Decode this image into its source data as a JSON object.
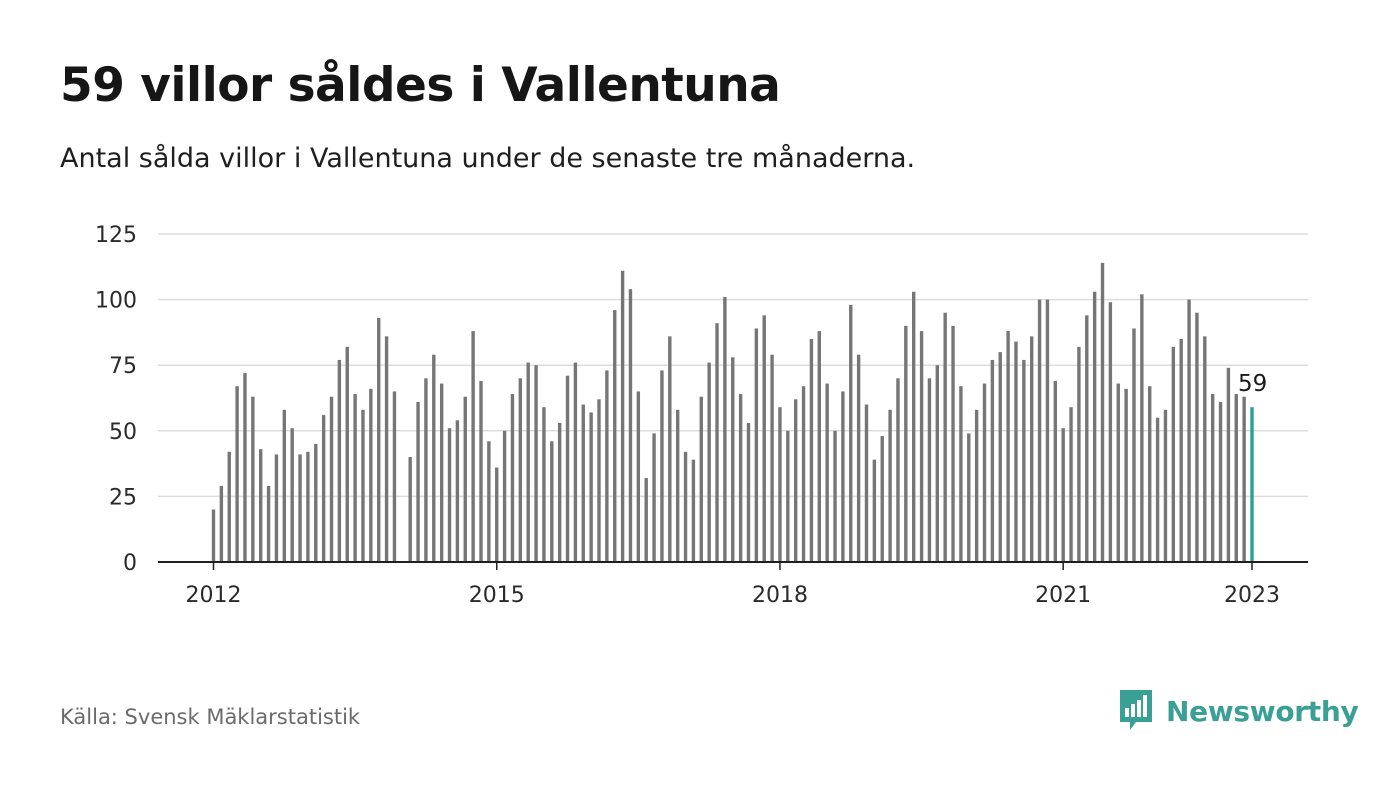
{
  "header": {
    "title": "59 villor såldes i Vallentuna",
    "subtitle": "Antal sålda villor i Vallentuna under de senaste tre månaderna."
  },
  "footer": {
    "source": "Källa: Svensk Mäklarstatistik",
    "brand": "Newsworthy"
  },
  "colors": {
    "bar": "#767676",
    "highlight": "#2aa198",
    "grid": "#dcdcdc",
    "axis": "#1f1f1f",
    "brand": "#3aa095"
  },
  "icons": {
    "brand_logo": "newsworthy-bar-chart-icon"
  },
  "chart_data": {
    "type": "bar",
    "title": "59 villor såldes i Vallentuna",
    "xlabel": "",
    "ylabel": "",
    "ylim": [
      0,
      125
    ],
    "yticks": [
      0,
      25,
      50,
      75,
      100,
      125
    ],
    "xticks": [
      "2012",
      "2015",
      "2018",
      "2021",
      "2023"
    ],
    "grid": true,
    "highlight_label": "59",
    "series": [
      {
        "values": [
          20,
          29,
          42,
          67,
          72,
          63,
          43,
          29,
          41,
          58,
          51,
          41,
          42,
          45,
          56,
          63,
          77,
          82,
          64,
          58,
          66,
          93,
          86,
          65,
          null,
          40,
          61,
          70,
          79,
          68,
          51,
          54,
          63,
          88,
          69,
          46,
          36,
          50,
          64,
          70,
          76,
          75,
          59,
          46,
          53,
          71,
          76,
          60,
          57,
          62,
          73,
          96,
          111,
          104,
          65,
          32,
          49,
          73,
          86,
          58,
          42,
          39,
          63,
          76,
          91,
          101,
          78,
          64,
          53,
          89,
          94,
          79,
          59,
          50,
          62,
          67,
          85,
          88,
          68,
          50,
          65,
          98,
          79,
          60,
          39,
          48,
          58,
          70,
          90,
          103,
          88,
          70,
          75,
          95,
          90,
          67,
          49,
          58,
          68,
          77,
          80,
          88,
          84,
          77,
          86,
          100,
          100,
          69,
          51,
          59,
          82,
          94,
          103,
          114,
          99,
          68,
          66,
          89,
          102,
          67,
          55,
          58,
          82,
          85,
          100,
          95,
          86,
          64,
          61,
          74,
          64,
          63,
          59
        ]
      }
    ]
  }
}
